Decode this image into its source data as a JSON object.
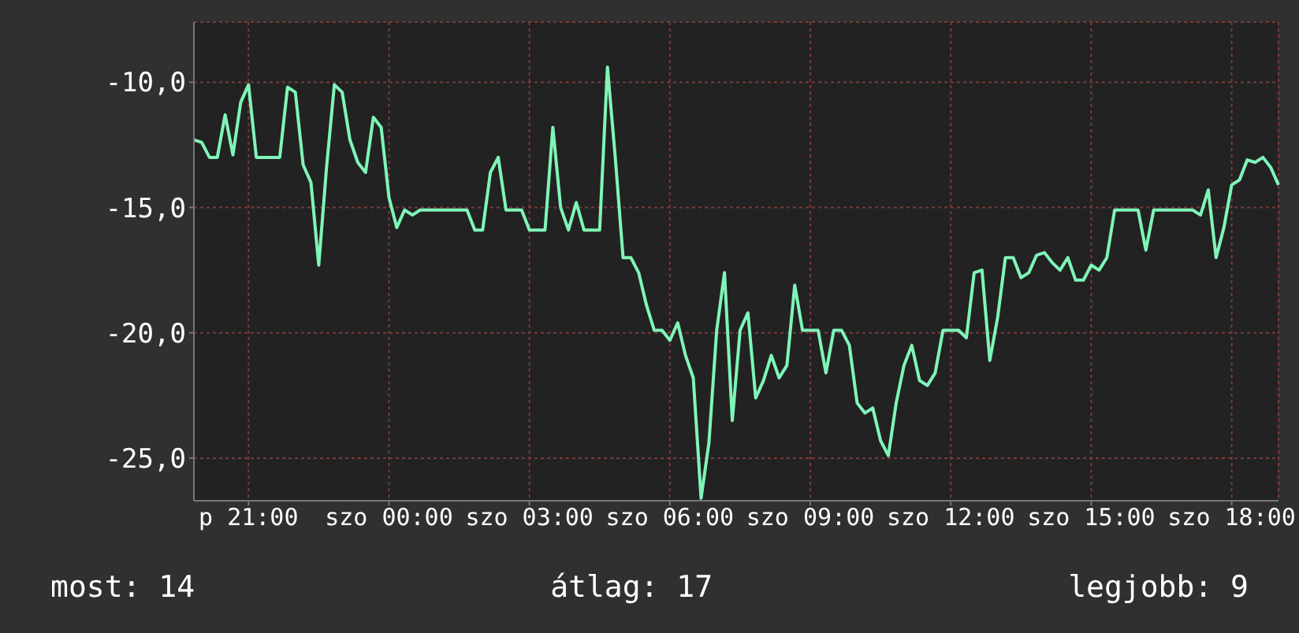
{
  "chart_data": {
    "type": "line",
    "color": "#7ff5b8",
    "grid": true,
    "ylim": [
      -26.7,
      -7.6
    ],
    "yticks": [
      {
        "value": -10,
        "label": "-10,0"
      },
      {
        "value": -15,
        "label": "-15,0"
      },
      {
        "value": -20,
        "label": "-20,0"
      },
      {
        "value": -25,
        "label": "-25,0"
      }
    ],
    "annotations": [
      "most: 14",
      "átlag: 17",
      "legjobb: 9"
    ],
    "categories": [
      null,
      null,
      null,
      null,
      null,
      null,
      null,
      "p 21:00",
      null,
      null,
      null,
      null,
      null,
      null,
      null,
      null,
      null,
      null,
      null,
      null,
      null,
      null,
      null,
      null,
      null,
      "szo 00:00",
      null,
      null,
      null,
      null,
      null,
      null,
      null,
      null,
      null,
      null,
      null,
      null,
      null,
      null,
      null,
      null,
      null,
      "szo 03:00",
      null,
      null,
      null,
      null,
      null,
      null,
      null,
      null,
      null,
      null,
      null,
      null,
      null,
      null,
      null,
      null,
      null,
      "szo 06:00",
      null,
      null,
      null,
      null,
      null,
      null,
      null,
      null,
      null,
      null,
      null,
      null,
      null,
      null,
      null,
      null,
      null,
      "szo 09:00",
      null,
      null,
      null,
      null,
      null,
      null,
      null,
      null,
      null,
      null,
      null,
      null,
      null,
      null,
      null,
      null,
      null,
      "szo 12:00",
      null,
      null,
      null,
      null,
      null,
      null,
      null,
      null,
      null,
      null,
      null,
      null,
      null,
      null,
      null,
      null,
      null,
      "szo 15:00",
      null,
      null,
      null,
      null,
      null,
      null,
      null,
      null,
      null,
      null,
      null,
      null,
      null,
      null,
      null,
      null,
      null,
      "szo 18:00",
      null,
      null,
      null,
      null,
      null,
      null
    ],
    "values": [
      -12.3,
      -12.4,
      -13.0,
      -13.0,
      -11.3,
      -12.9,
      -10.8,
      -10.1,
      -13.0,
      -13.0,
      -13.0,
      -13.0,
      -10.2,
      -10.4,
      -13.3,
      -14.0,
      -17.3,
      -13.4,
      -10.1,
      -10.4,
      -12.3,
      -13.2,
      -13.6,
      -11.4,
      -11.8,
      -14.6,
      -15.8,
      -15.1,
      -15.3,
      -15.1,
      -15.1,
      -15.1,
      -15.1,
      -15.1,
      -15.1,
      -15.1,
      -15.9,
      -15.9,
      -13.6,
      -13.0,
      -15.1,
      -15.1,
      -15.1,
      -15.9,
      -15.9,
      -15.9,
      -11.8,
      -15.0,
      -15.9,
      -14.8,
      -15.9,
      -15.9,
      -15.9,
      -9.4,
      -13.0,
      -17.0,
      -17.0,
      -17.6,
      -18.9,
      -19.9,
      -19.9,
      -20.3,
      -19.6,
      -20.9,
      -21.8,
      -26.6,
      -24.4,
      -19.9,
      -17.6,
      -23.5,
      -19.9,
      -19.2,
      -22.6,
      -21.9,
      -20.9,
      -21.8,
      -21.3,
      -18.1,
      -19.9,
      -19.9,
      -19.9,
      -21.6,
      -19.9,
      -19.9,
      -20.5,
      -22.8,
      -23.2,
      -23.0,
      -24.3,
      -24.9,
      -22.8,
      -21.3,
      -20.5,
      -21.9,
      -22.1,
      -21.6,
      -19.9,
      -19.9,
      -19.9,
      -20.2,
      -17.6,
      -17.5,
      -21.1,
      -19.4,
      -17.0,
      -17.0,
      -17.8,
      -17.6,
      -16.9,
      -16.8,
      -17.2,
      -17.5,
      -17.0,
      -17.9,
      -17.9,
      -17.3,
      -17.5,
      -17.0,
      -15.1,
      -15.1,
      -15.1,
      -15.1,
      -16.7,
      -15.1,
      -15.1,
      -15.1,
      -15.1,
      -15.1,
      -15.1,
      -15.3,
      -14.3,
      -17.0,
      -15.8,
      -14.1,
      -13.9,
      -13.1,
      -13.2,
      -13.0,
      -13.4,
      -14.1
    ]
  }
}
